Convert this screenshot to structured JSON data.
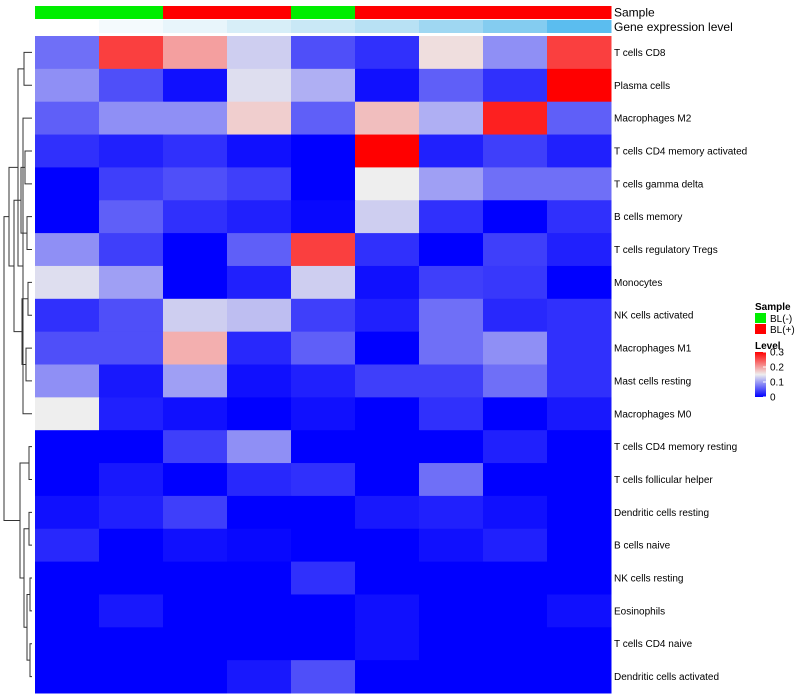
{
  "chart_data": {
    "type": "heatmap",
    "title": "",
    "annotation_rows": [
      {
        "name": "Sample",
        "label": "Sample"
      },
      {
        "name": "gene-expression-level",
        "label": "Gene expression level"
      }
    ],
    "columns": [
      {
        "sample": "BL(-)",
        "expression_color": "#ffffff"
      },
      {
        "sample": "BL(-)",
        "expression_color": "#f4fafd"
      },
      {
        "sample": "BL(+)",
        "expression_color": "#e8f5fb"
      },
      {
        "sample": "BL(+)",
        "expression_color": "#d7eef8"
      },
      {
        "sample": "BL(-)",
        "expression_color": "#c9e8f6"
      },
      {
        "sample": "BL(+)",
        "expression_color": "#b8e1f4"
      },
      {
        "sample": "BL(+)",
        "expression_color": "#9fd7f2"
      },
      {
        "sample": "BL(+)",
        "expression_color": "#84ccf0"
      },
      {
        "sample": "BL(+)",
        "expression_color": "#5bbdef"
      }
    ],
    "rows": [
      "T cells CD8",
      "Plasma cells",
      "Macrophages M2",
      "T cells CD4 memory activated",
      "T cells gamma delta",
      "B cells memory",
      "T cells regulatory  Tregs",
      "Monocytes",
      "NK cells activated",
      "Macrophages M1",
      "Mast cells resting",
      "Macrophages M0",
      "T cells CD4 memory resting",
      "T cells follicular helper",
      "Dendritic cells resting",
      "B cells naive",
      "NK cells resting",
      "Eosinophils",
      "T cells CD4 naive",
      "Dendritic cells activated"
    ],
    "values": [
      [
        0.07,
        0.26,
        0.2,
        0.13,
        0.05,
        0.03,
        0.16,
        0.09,
        0.26
      ],
      [
        0.09,
        0.05,
        0.01,
        0.14,
        0.11,
        0.01,
        0.06,
        0.03,
        0.3
      ],
      [
        0.06,
        0.09,
        0.09,
        0.17,
        0.06,
        0.18,
        0.11,
        0.28,
        0.06
      ],
      [
        0.03,
        0.02,
        0.03,
        0.01,
        0.0,
        0.3,
        0.02,
        0.04,
        0.02
      ],
      [
        0.0,
        0.04,
        0.05,
        0.04,
        0.0,
        0.15,
        0.1,
        0.07,
        0.07
      ],
      [
        0.0,
        0.06,
        0.03,
        0.02,
        0.005,
        0.13,
        0.03,
        0.0,
        0.03
      ],
      [
        0.09,
        0.04,
        0.0,
        0.06,
        0.26,
        0.03,
        0.0,
        0.04,
        0.02
      ],
      [
        0.14,
        0.1,
        0.0,
        0.02,
        0.13,
        0.01,
        0.04,
        0.035,
        0.0
      ],
      [
        0.03,
        0.05,
        0.13,
        0.12,
        0.04,
        0.02,
        0.07,
        0.025,
        0.03
      ],
      [
        0.05,
        0.05,
        0.19,
        0.025,
        0.06,
        0.0,
        0.07,
        0.09,
        0.03
      ],
      [
        0.09,
        0.015,
        0.1,
        0.01,
        0.02,
        0.04,
        0.04,
        0.07,
        0.03
      ],
      [
        0.15,
        0.02,
        0.01,
        0.0,
        0.01,
        0.0,
        0.03,
        0.0,
        0.015
      ],
      [
        0.0,
        0.0,
        0.04,
        0.09,
        0.0,
        0.0,
        0.0,
        0.02,
        0.0
      ],
      [
        0.0,
        0.015,
        0.0,
        0.025,
        0.03,
        0.0,
        0.07,
        0.0,
        0.0
      ],
      [
        0.01,
        0.02,
        0.04,
        0.0,
        0.0,
        0.015,
        0.02,
        0.01,
        0.0
      ],
      [
        0.025,
        0.0,
        0.01,
        0.005,
        0.0,
        0.0,
        0.01,
        0.02,
        0.0
      ],
      [
        0.0,
        0.0,
        0.0,
        0.0,
        0.03,
        0.0,
        0.0,
        0.0,
        0.0
      ],
      [
        0.0,
        0.015,
        0.0,
        0.0,
        0.0,
        0.01,
        0.0,
        0.0,
        0.01
      ],
      [
        0.0,
        0.0,
        0.0,
        0.0,
        0.0,
        0.01,
        0.0,
        0.0,
        0.0
      ],
      [
        0.0,
        0.0,
        0.0,
        0.015,
        0.05,
        0.0,
        0.0,
        0.0,
        0.0
      ]
    ],
    "value_range": [
      0,
      0.3
    ],
    "colorscale": {
      "low": "#0000ff",
      "mid": "#eeeeee",
      "high": "#ff0000",
      "mid_value": 0.15
    },
    "dendrogram": "rows",
    "legend": {
      "sample_title": "Sample",
      "sample_entries": [
        {
          "label": "BL(-)",
          "color": "#00ee00"
        },
        {
          "label": "BL(+)",
          "color": "#ff0000"
        }
      ],
      "level_title": "Level",
      "level_ticks": [
        "0.3",
        "0.2",
        "0.1",
        "0"
      ],
      "level_tick_values": [
        0.3,
        0.2,
        0.1,
        0
      ],
      "placement": "right"
    }
  }
}
